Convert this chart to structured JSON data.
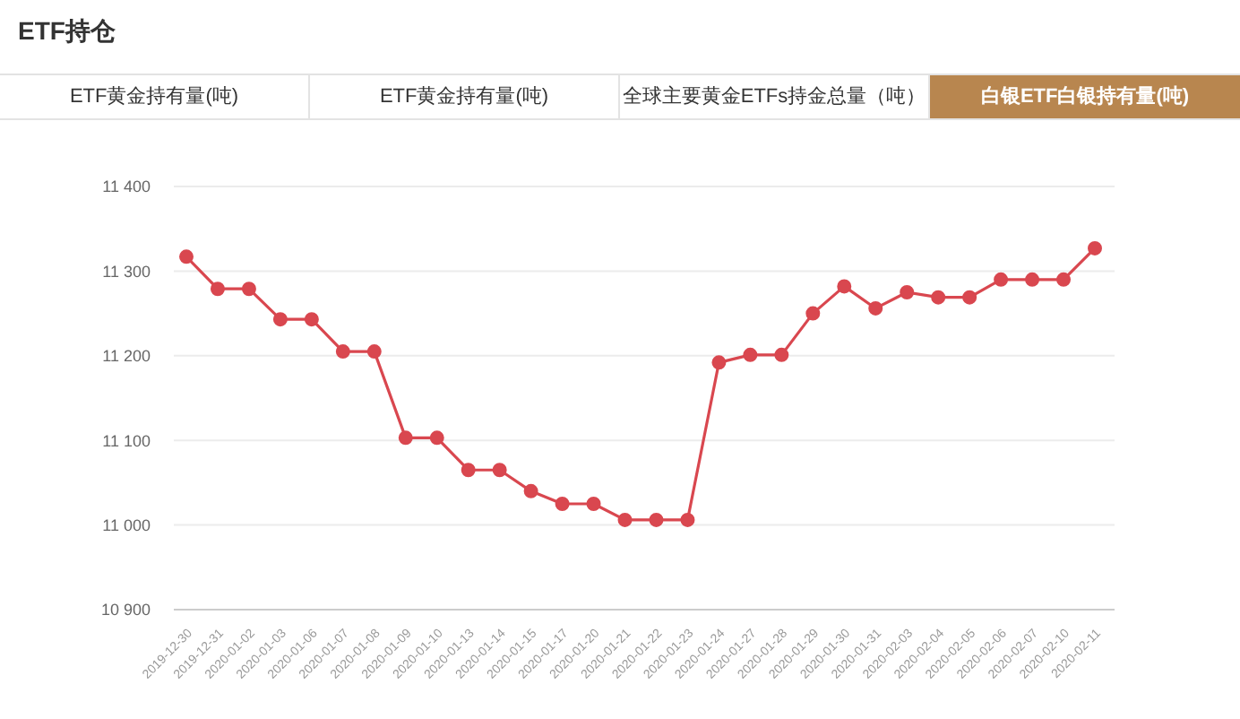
{
  "chart_data": {
    "type": "line",
    "title": "ETF持仓",
    "subtitle": "白银ETF白银持有量(吨)",
    "annotations": [
      "ETF黄金持有量(吨)",
      "ETF黄金持有量(吨)",
      "全球主要黄金ETFs持金总量（吨）"
    ],
    "categories": [
      "2019-12-30",
      "2019-12-31",
      "2020-01-02",
      "2020-01-03",
      "2020-01-06",
      "2020-01-07",
      "2020-01-08",
      "2020-01-09",
      "2020-01-10",
      "2020-01-13",
      "2020-01-14",
      "2020-01-15",
      "2020-01-17",
      "2020-01-20",
      "2020-01-21",
      "2020-01-22",
      "2020-01-23",
      "2020-01-24",
      "2020-01-27",
      "2020-01-28",
      "2020-01-29",
      "2020-01-30",
      "2020-01-31",
      "2020-02-03",
      "2020-02-04",
      "2020-02-05",
      "2020-02-06",
      "2020-02-07",
      "2020-02-10",
      "2020-02-11"
    ],
    "series": [
      {
        "color": "#d9474f",
        "values": [
          11317,
          11279,
          11279,
          11243,
          11243,
          11205,
          11205,
          11103,
          11103,
          11065,
          11065,
          11040,
          11025,
          11025,
          11006,
          11006,
          11006,
          11192,
          11201,
          11201,
          11250,
          11282,
          11256,
          11275,
          11269,
          11269,
          11290,
          11290,
          11290,
          11327
        ]
      }
    ],
    "ylim": [
      10900,
      11400
    ],
    "yticks": [
      {
        "value": 10900,
        "label": "10 900"
      },
      {
        "value": 11000,
        "label": "11 000"
      },
      {
        "value": 11100,
        "label": "11 100"
      },
      {
        "value": 11200,
        "label": "11 200"
      },
      {
        "value": 11300,
        "label": "11 300"
      },
      {
        "value": 11400,
        "label": "11 400"
      }
    ],
    "grid": "y",
    "marker": "circle",
    "line_style": "solid"
  }
}
